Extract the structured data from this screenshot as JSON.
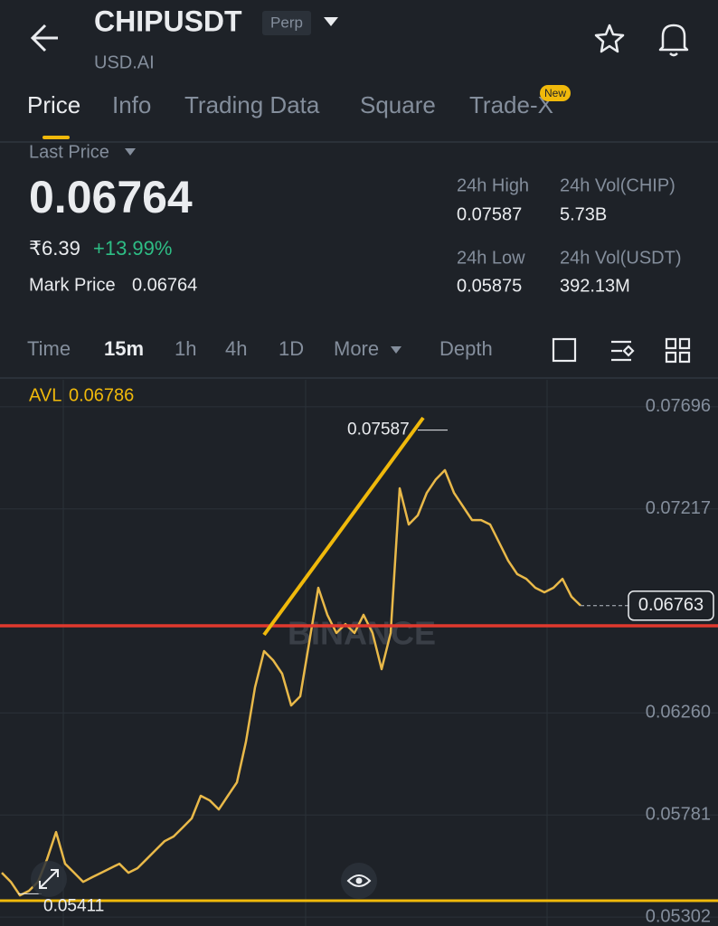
{
  "header": {
    "symbol": "CHIPUSDT",
    "badge": "Perp",
    "subtitle": "USD.AI"
  },
  "tabs": {
    "items": [
      "Price",
      "Info",
      "Trading Data",
      "Square",
      "Trade-X"
    ],
    "new_badge": "New"
  },
  "price": {
    "last_price_label": "Last Price",
    "last_price": "0.06764",
    "local_price": "₹6.39",
    "change": "+13.99%",
    "mark_price_label": "Mark Price",
    "mark_price": "0.06764"
  },
  "stats": {
    "high_label": "24h High",
    "high": "0.07587",
    "vol_base_label": "24h Vol(CHIP)",
    "vol_base": "5.73B",
    "low_label": "24h Low",
    "low": "0.05875",
    "vol_quote_label": "24h Vol(USDT)",
    "vol_quote": "392.13M"
  },
  "intervals": {
    "items": [
      "Time",
      "15m",
      "1h",
      "4h",
      "1D",
      "More",
      "Depth"
    ]
  },
  "chart_data": {
    "type": "line",
    "avl_label": "AVL",
    "avl": 0.06786,
    "watermark": "BINANCE",
    "color": "#e9b949",
    "values": [
      0.0551,
      0.05467,
      0.05404,
      0.05425,
      0.05467,
      0.05573,
      0.05701,
      0.05552,
      0.0551,
      0.05467,
      0.05489,
      0.0551,
      0.05531,
      0.05552,
      0.0551,
      0.05531,
      0.05573,
      0.05616,
      0.05658,
      0.0568,
      0.05722,
      0.05765,
      0.05871,
      0.05849,
      0.05807,
      0.05871,
      0.05934,
      0.06125,
      0.0638,
      0.0655,
      0.06507,
      0.06444,
      0.06295,
      0.06338,
      0.06592,
      0.06847,
      0.0672,
      0.06635,
      0.06677,
      0.06635,
      0.0672,
      0.06635,
      0.06465,
      0.06635,
      0.07314,
      0.07144,
      0.07187,
      0.07293,
      0.07356,
      0.07399,
      0.07293,
      0.07229,
      0.07165,
      0.07165,
      0.07144,
      0.07059,
      0.06974,
      0.06911,
      0.06889,
      0.06847,
      0.06826,
      0.06847,
      0.06889,
      0.06805,
      0.06764
    ],
    "ylim": [
      0.0526,
      0.07823
    ],
    "yticks": [
      0.07696,
      0.07217,
      {
        "value": 0.0626,
        "label": "0.06260"
      },
      0.05781,
      0.05302
    ],
    "current_price": 0.06763,
    "high_marker": 0.07587,
    "low_marker": 0.05411,
    "grid": true
  }
}
